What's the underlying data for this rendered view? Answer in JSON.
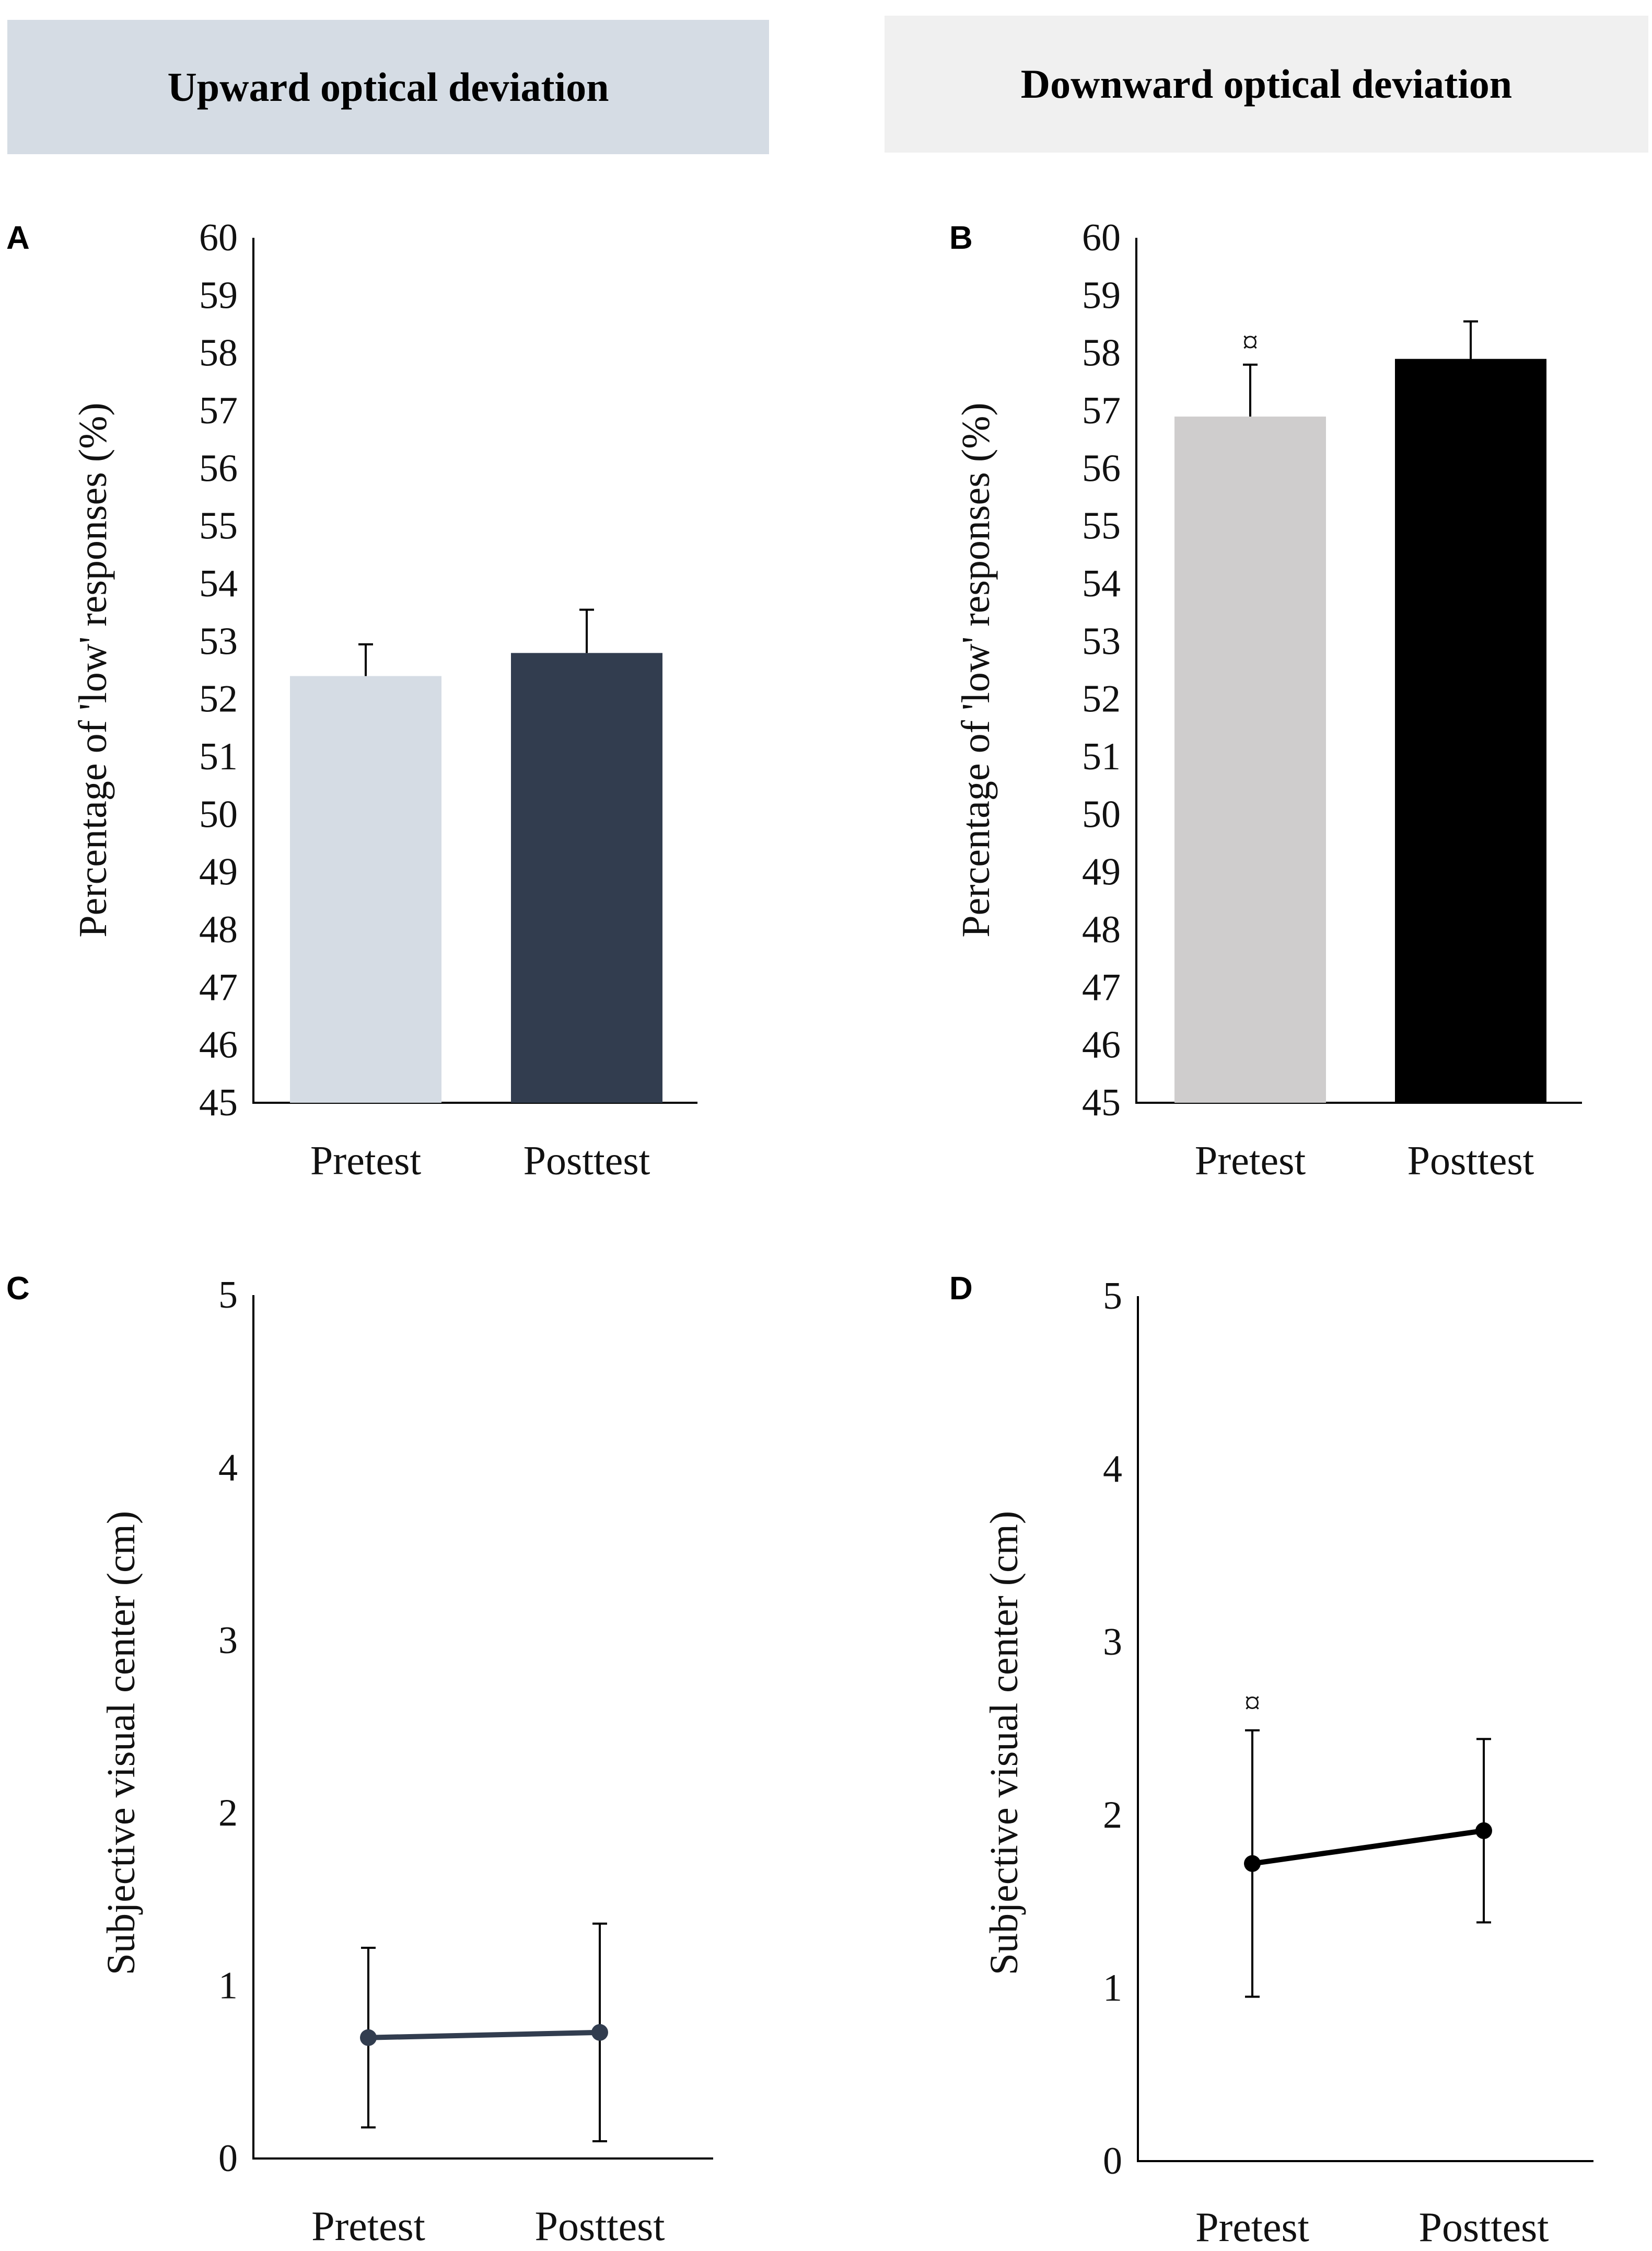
{
  "headers": {
    "upward": "Upward optical deviation",
    "downward": "Downward optical deviation"
  },
  "chart_data": [
    {
      "id": "A",
      "panel_label": "A",
      "type": "bar",
      "categories": [
        "Pretest",
        "Posttest"
      ],
      "values": [
        52.4,
        52.8
      ],
      "errors": [
        0.55,
        0.75
      ],
      "bar_colors": [
        "#d5dce4",
        "#323d4f"
      ],
      "ylabel": "Percentage of 'low' responses (%)",
      "ylim": [
        45,
        60
      ],
      "yticks": [
        45,
        46,
        47,
        48,
        49,
        50,
        51,
        52,
        53,
        54,
        55,
        56,
        57,
        58,
        59,
        60
      ],
      "significance": [
        "",
        ""
      ]
    },
    {
      "id": "B",
      "panel_label": "B",
      "type": "bar",
      "categories": [
        "Pretest",
        "Posttest"
      ],
      "values": [
        56.9,
        57.9
      ],
      "errors": [
        0.9,
        0.65
      ],
      "bar_colors": [
        "#cfcdcd",
        "#000000"
      ],
      "ylabel": "Percentage of 'low' responses (%)",
      "ylim": [
        45,
        60
      ],
      "yticks": [
        45,
        46,
        47,
        48,
        49,
        50,
        51,
        52,
        53,
        54,
        55,
        56,
        57,
        58,
        59,
        60
      ],
      "significance": [
        "¤",
        ""
      ]
    },
    {
      "id": "C",
      "panel_label": "C",
      "type": "line",
      "categories": [
        "Pretest",
        "Posttest"
      ],
      "values": [
        0.7,
        0.73
      ],
      "errors": [
        0.52,
        0.63
      ],
      "line_color": "#323d4f",
      "ylabel": "Subjective visual center (cm)",
      "ylim": [
        0,
        5
      ],
      "yticks": [
        0,
        1,
        2,
        3,
        4,
        5
      ],
      "significance": [
        "",
        ""
      ]
    },
    {
      "id": "D",
      "panel_label": "D",
      "type": "line",
      "categories": [
        "Pretest",
        "Posttest"
      ],
      "values": [
        1.72,
        1.91
      ],
      "errors": [
        0.77,
        0.53
      ],
      "line_color": "#000000",
      "ylabel": "Subjective visual center (cm)",
      "ylim": [
        0,
        5
      ],
      "yticks": [
        0,
        1,
        2,
        3,
        4,
        5
      ],
      "significance": [
        "¤",
        ""
      ]
    }
  ]
}
